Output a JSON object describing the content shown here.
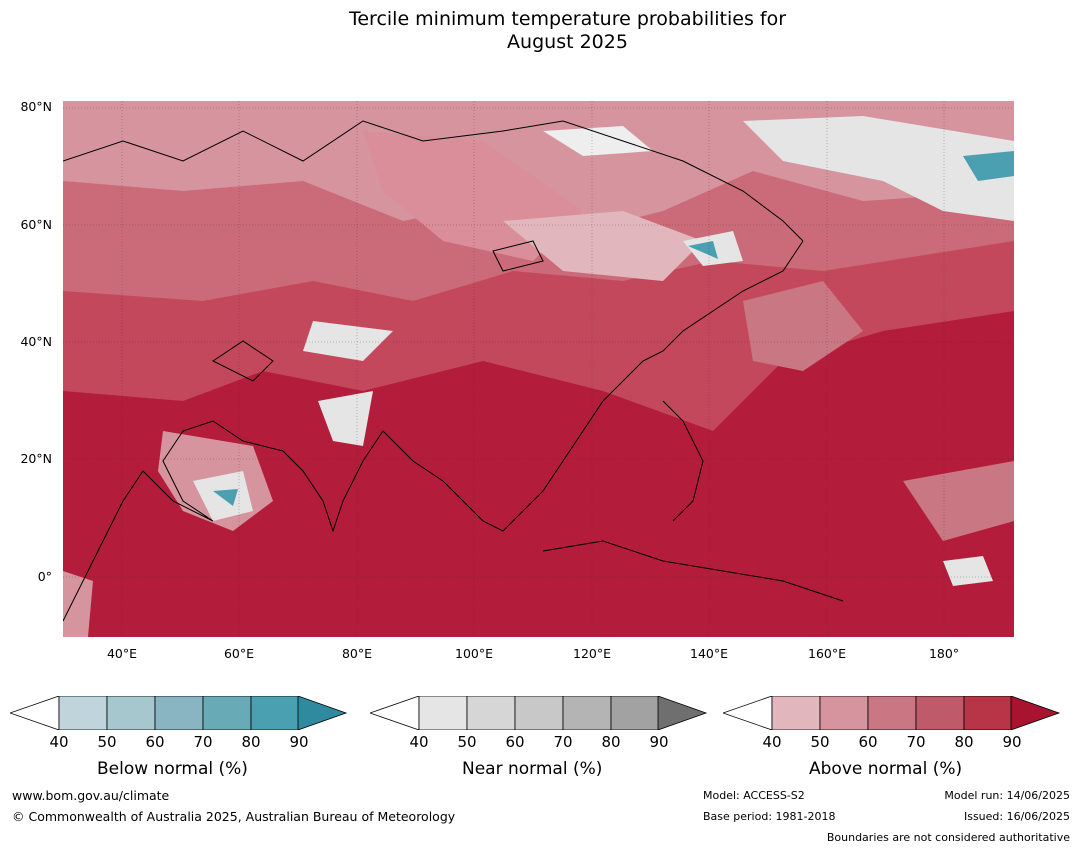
{
  "title_line1": "Tercile minimum temperature probabilities for",
  "title_line2": "August 2025",
  "lat_labels": [
    "80°N",
    "60°N",
    "40°N",
    "20°N",
    "0°"
  ],
  "lon_labels": [
    "40°E",
    "60°E",
    "80°E",
    "100°E",
    "120°E",
    "140°E",
    "160°E",
    "180°"
  ],
  "legends": [
    {
      "label": "Below normal (%)",
      "ticks": [
        "40",
        "50",
        "60",
        "70",
        "80",
        "90"
      ],
      "colors": [
        "#c0d4db",
        "#a6c7ce",
        "#88b5c1",
        "#69aab7",
        "#4a9fb0",
        "#3a8fa5"
      ]
    },
    {
      "label": "Near normal (%)",
      "ticks": [
        "40",
        "50",
        "60",
        "70",
        "80",
        "90"
      ],
      "colors": [
        "#e5e5e5",
        "#d6d6d6",
        "#c8c8c8",
        "#b4b4b4",
        "#a2a2a2",
        "#7f7f7f"
      ]
    },
    {
      "label": "Above normal (%)",
      "ticks": [
        "40",
        "50",
        "60",
        "70",
        "80",
        "90"
      ],
      "colors": [
        "#e2b6bd",
        "#d6949e",
        "#c97783",
        "#be5a69",
        "#b83547",
        "#b31c3a"
      ]
    }
  ],
  "footer": {
    "website": "www.bom.gov.au/climate",
    "copyright": "© Commonwealth of Australia 2025, Australian Bureau of Meteorology",
    "model": "Model: ACCESS-S2",
    "base_period": "Base period: 1981-2018",
    "model_run": "Model run: 14/06/2025",
    "issued": "Issued: 16/06/2025",
    "boundaries": "Boundaries are not considered authoritative"
  },
  "colors": {
    "above_high": "#b31c3a",
    "above_mid": "#be5a69",
    "above_low": "#d6949e",
    "near": "#e5e5e5",
    "below": "#4a9fb0"
  }
}
